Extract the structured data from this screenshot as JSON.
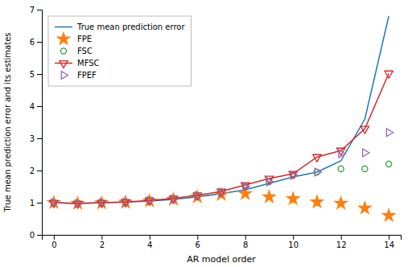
{
  "chart_data": {
    "type": "line",
    "xlabel": "AR model order",
    "ylabel": "True mean prediction error and its estimates",
    "x": [
      0,
      1,
      2,
      3,
      4,
      5,
      6,
      7,
      8,
      9,
      10,
      11,
      12,
      13,
      14
    ],
    "series": [
      {
        "name": "True mean prediction error",
        "line_style": "solid",
        "values": [
          1.0,
          0.975,
          1.0,
          1.02,
          1.05,
          1.1,
          1.18,
          1.28,
          1.4,
          1.6,
          1.8,
          1.95,
          2.3,
          3.6,
          6.8
        ]
      },
      {
        "name": "FPE",
        "marker": "star",
        "line_style": "none",
        "values": [
          1.0,
          0.975,
          0.99,
          1.01,
          1.05,
          1.1,
          1.18,
          1.25,
          1.28,
          1.18,
          1.12,
          1.02,
          0.98,
          0.83,
          0.6
        ]
      },
      {
        "name": "FSC",
        "marker": "circle",
        "line_style": "none",
        "values": [
          1.0,
          0.975,
          1.0,
          1.02,
          1.07,
          1.12,
          1.22,
          1.32,
          1.5,
          1.65,
          1.85,
          1.95,
          2.05,
          2.05,
          2.2
        ]
      },
      {
        "name": "MFSC",
        "marker": "triangle-down",
        "line_style": "solid",
        "values": [
          1.0,
          0.975,
          1.0,
          1.02,
          1.07,
          1.13,
          1.23,
          1.35,
          1.55,
          1.75,
          1.9,
          2.42,
          2.62,
          3.3,
          5.02
        ]
      },
      {
        "name": "FPEF",
        "marker": "triangle-right",
        "line_style": "none",
        "values": [
          1.0,
          0.975,
          1.0,
          1.02,
          1.07,
          1.12,
          1.22,
          1.32,
          1.5,
          1.65,
          1.85,
          1.95,
          2.52,
          2.55,
          3.18
        ]
      }
    ],
    "xlim": [
      -0.5,
      14.5
    ],
    "ylim": [
      0,
      7
    ],
    "xticks": [
      0,
      2,
      4,
      6,
      8,
      10,
      12,
      14
    ],
    "yticks": [
      0,
      1,
      2,
      3,
      4,
      5,
      6,
      7
    ],
    "grid": false,
    "legend": "upper left"
  }
}
